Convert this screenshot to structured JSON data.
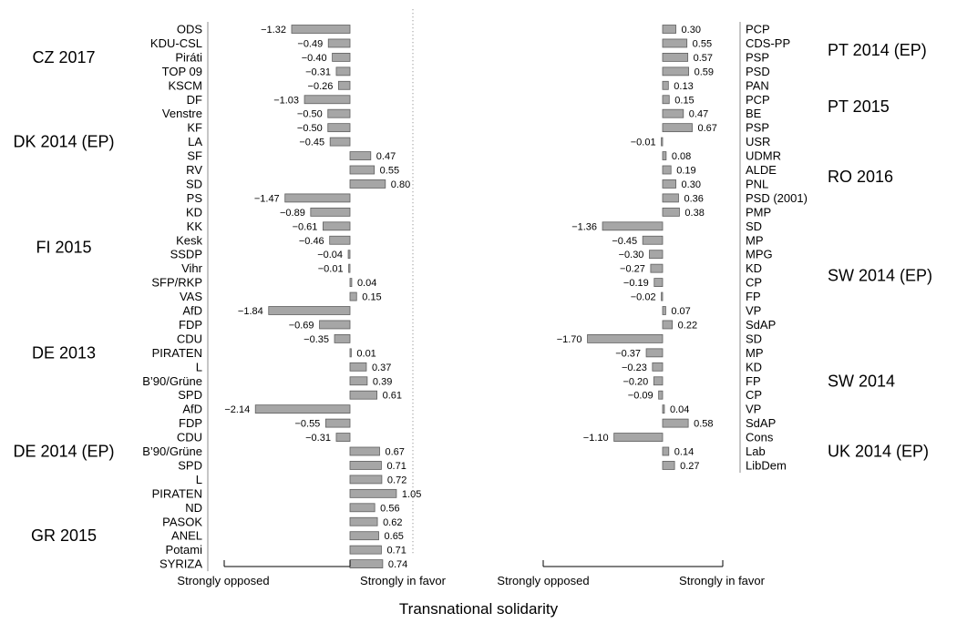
{
  "chart_data": {
    "type": "bar",
    "orientation": "horizontal",
    "xlabel": "Transnational solidarity",
    "bar_color": "#a6a6a6",
    "panels": [
      {
        "axis_labels": [
          "Strongly opposed",
          "Strongly in favor"
        ],
        "groups": [
          {
            "label": "CZ 2017",
            "parties": [
              {
                "name": "ODS",
                "value": -1.32,
                "value_label": "−1.32"
              },
              {
                "name": "KDU-CSL",
                "value": -0.49,
                "value_label": "−0.49"
              },
              {
                "name": "Piráti",
                "value": -0.4,
                "value_label": "−0.40"
              },
              {
                "name": "TOP 09",
                "value": -0.31,
                "value_label": "−0.31"
              },
              {
                "name": "KSCM",
                "value": -0.26,
                "value_label": "−0.26"
              }
            ]
          },
          {
            "label": "DK 2014 (EP)",
            "parties": [
              {
                "name": "DF",
                "value": -1.03,
                "value_label": "−1.03"
              },
              {
                "name": "Venstre",
                "value": -0.5,
                "value_label": "−0.50"
              },
              {
                "name": "KF",
                "value": -0.5,
                "value_label": "−0.50"
              },
              {
                "name": "LA",
                "value": -0.45,
                "value_label": "−0.45"
              },
              {
                "name": "SF",
                "value": 0.47,
                "value_label": "0.47"
              },
              {
                "name": "RV",
                "value": 0.55,
                "value_label": "0.55"
              },
              {
                "name": "SD",
                "value": 0.8,
                "value_label": "0.80"
              }
            ]
          },
          {
            "label": "FI 2015",
            "parties": [
              {
                "name": "PS",
                "value": -1.47,
                "value_label": "−1.47"
              },
              {
                "name": "KD",
                "value": -0.89,
                "value_label": "−0.89"
              },
              {
                "name": "KK",
                "value": -0.61,
                "value_label": "−0.61"
              },
              {
                "name": "Kesk",
                "value": -0.46,
                "value_label": "−0.46"
              },
              {
                "name": "SSDP",
                "value": -0.04,
                "value_label": "−0.04"
              },
              {
                "name": "Vihr",
                "value": -0.01,
                "value_label": "−0.01"
              },
              {
                "name": "SFP/RKP",
                "value": 0.04,
                "value_label": "0.04"
              },
              {
                "name": "VAS",
                "value": 0.15,
                "value_label": "0.15"
              }
            ]
          },
          {
            "label": "DE 2013",
            "parties": [
              {
                "name": "AfD",
                "value": -1.84,
                "value_label": "−1.84"
              },
              {
                "name": "FDP",
                "value": -0.69,
                "value_label": "−0.69"
              },
              {
                "name": "CDU",
                "value": -0.35,
                "value_label": "−0.35"
              },
              {
                "name": "PIRATEN",
                "value": 0.01,
                "value_label": "0.01"
              },
              {
                "name": "L",
                "value": 0.37,
                "value_label": "0.37"
              },
              {
                "name": "B’90/Grüne",
                "value": 0.39,
                "value_label": "0.39"
              },
              {
                "name": "SPD",
                "value": 0.61,
                "value_label": "0.61"
              }
            ]
          },
          {
            "label": "DE 2014 (EP)",
            "parties": [
              {
                "name": "AfD",
                "value": -2.14,
                "value_label": "−2.14"
              },
              {
                "name": "FDP",
                "value": -0.55,
                "value_label": "−0.55"
              },
              {
                "name": "CDU",
                "value": -0.31,
                "value_label": "−0.31"
              },
              {
                "name": "B’90/Grüne",
                "value": 0.67,
                "value_label": "0.67"
              },
              {
                "name": "SPD",
                "value": 0.71,
                "value_label": "0.71"
              },
              {
                "name": "L",
                "value": 0.72,
                "value_label": "0.72"
              },
              {
                "name": "PIRATEN",
                "value": 1.05,
                "value_label": "1.05"
              }
            ]
          },
          {
            "label": "GR 2015",
            "parties": [
              {
                "name": "ND",
                "value": 0.56,
                "value_label": "0.56"
              },
              {
                "name": "PASOK",
                "value": 0.62,
                "value_label": "0.62"
              },
              {
                "name": "ANEL",
                "value": 0.65,
                "value_label": "0.65"
              },
              {
                "name": "Potami",
                "value": 0.71,
                "value_label": "0.71"
              },
              {
                "name": "SYRIZA",
                "value": 0.74,
                "value_label": "0.74"
              }
            ]
          }
        ]
      },
      {
        "axis_labels": [
          "Strongly opposed",
          "Strongly in favor"
        ],
        "groups": [
          {
            "label": "PT 2014 (EP)",
            "parties": [
              {
                "name": "PCP",
                "value": 0.3,
                "value_label": "0.30"
              },
              {
                "name": "CDS-PP",
                "value": 0.55,
                "value_label": "0.55"
              },
              {
                "name": "PSP",
                "value": 0.57,
                "value_label": "0.57"
              },
              {
                "name": "PSD",
                "value": 0.59,
                "value_label": "0.59"
              }
            ]
          },
          {
            "label": "PT 2015",
            "parties": [
              {
                "name": "PAN",
                "value": 0.13,
                "value_label": "0.13"
              },
              {
                "name": "PCP",
                "value": 0.15,
                "value_label": "0.15"
              },
              {
                "name": "BE",
                "value": 0.47,
                "value_label": "0.47"
              },
              {
                "name": "PSP",
                "value": 0.67,
                "value_label": "0.67"
              }
            ]
          },
          {
            "label": "RO 2016",
            "parties": [
              {
                "name": "USR",
                "value": -0.01,
                "value_label": "−0.01"
              },
              {
                "name": "UDMR",
                "value": 0.08,
                "value_label": "0.08"
              },
              {
                "name": "ALDE",
                "value": 0.19,
                "value_label": "0.19"
              },
              {
                "name": "PNL",
                "value": 0.3,
                "value_label": "0.30"
              },
              {
                "name": "PSD (2001)",
                "value": 0.36,
                "value_label": "0.36"
              },
              {
                "name": "PMP",
                "value": 0.38,
                "value_label": "0.38"
              }
            ]
          },
          {
            "label": "SW 2014 (EP)",
            "parties": [
              {
                "name": "SD",
                "value": -1.36,
                "value_label": "−1.36"
              },
              {
                "name": "MP",
                "value": -0.45,
                "value_label": "−0.45"
              },
              {
                "name": "MPG",
                "value": -0.3,
                "value_label": "−0.30"
              },
              {
                "name": "KD",
                "value": -0.27,
                "value_label": "−0.27"
              },
              {
                "name": "CP",
                "value": -0.19,
                "value_label": "−0.19"
              },
              {
                "name": "FP",
                "value": -0.02,
                "value_label": "−0.02"
              },
              {
                "name": "VP",
                "value": 0.07,
                "value_label": "0.07"
              },
              {
                "name": "SdAP",
                "value": 0.22,
                "value_label": "0.22"
              }
            ]
          },
          {
            "label": "SW 2014",
            "parties": [
              {
                "name": "SD",
                "value": -1.7,
                "value_label": "−1.70"
              },
              {
                "name": "MP",
                "value": -0.37,
                "value_label": "−0.37"
              },
              {
                "name": "KD",
                "value": -0.23,
                "value_label": "−0.23"
              },
              {
                "name": "FP",
                "value": -0.2,
                "value_label": "−0.20"
              },
              {
                "name": "CP",
                "value": -0.09,
                "value_label": "−0.09"
              },
              {
                "name": "VP",
                "value": 0.04,
                "value_label": "0.04"
              },
              {
                "name": "SdAP",
                "value": 0.58,
                "value_label": "0.58"
              }
            ]
          },
          {
            "label": "UK 2014 (EP)",
            "parties": [
              {
                "name": "Cons",
                "value": -1.1,
                "value_label": "−1.10"
              },
              {
                "name": "Lab",
                "value": 0.14,
                "value_label": "0.14"
              },
              {
                "name": "LibDem",
                "value": 0.27,
                "value_label": "0.27"
              }
            ]
          }
        ]
      }
    ]
  }
}
